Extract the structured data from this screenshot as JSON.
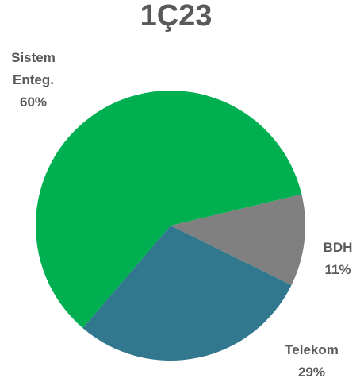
{
  "chart_data": {
    "type": "pie",
    "title": "1Ç23",
    "slices": [
      {
        "label_lines": [
          "Sistem",
          "Enteg."
        ],
        "value_label": "60%",
        "value": 60,
        "color": "#00B050"
      },
      {
        "label_lines": [
          "BDH"
        ],
        "value_label": "11%",
        "value": 11,
        "color": "#808080"
      },
      {
        "label_lines": [
          "Telekom"
        ],
        "value_label": "29%",
        "value": 29,
        "color": "#31788F"
      }
    ],
    "legend": "none"
  }
}
